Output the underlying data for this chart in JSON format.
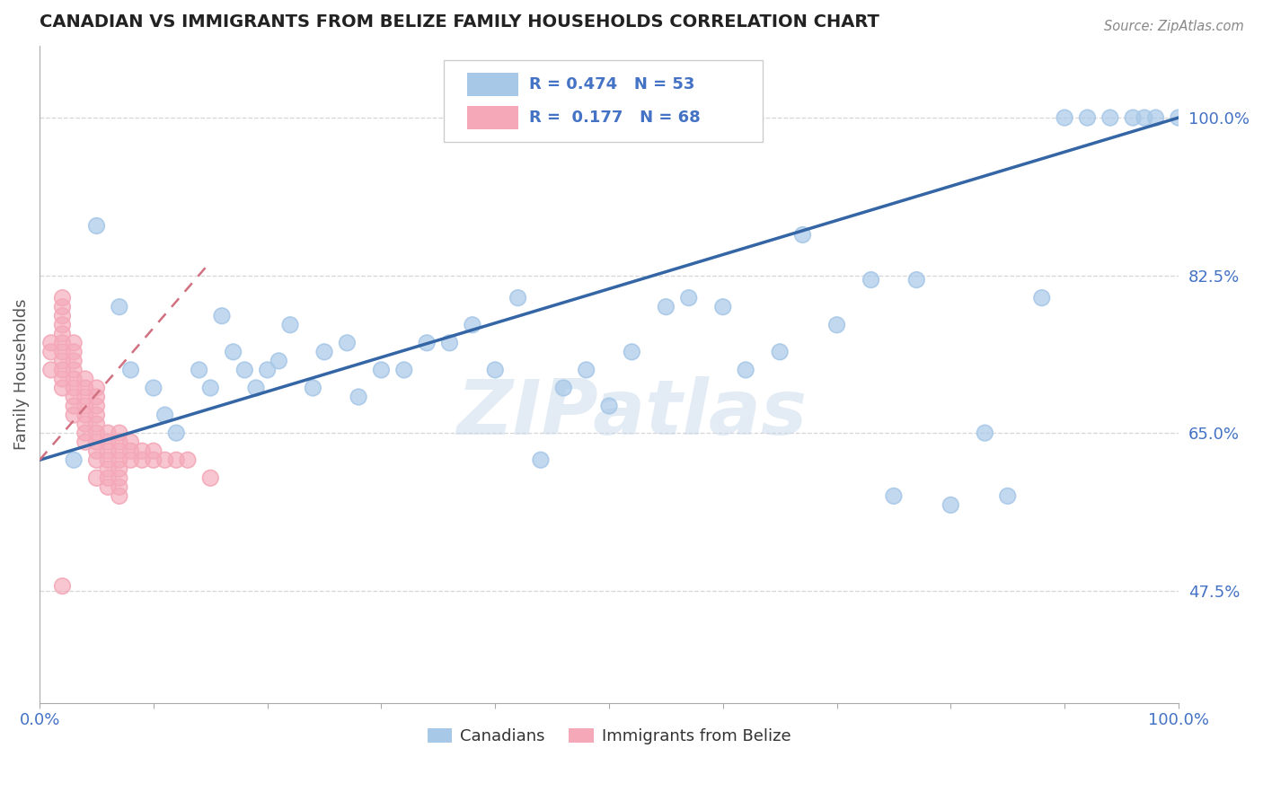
{
  "title": "CANADIAN VS IMMIGRANTS FROM BELIZE FAMILY HOUSEHOLDS CORRELATION CHART",
  "source": "Source: ZipAtlas.com",
  "ylabel": "Family Households",
  "watermark": "ZIPatlas",
  "xlim": [
    0.0,
    100.0
  ],
  "ylim": [
    35.0,
    108.0
  ],
  "ytick_vals": [
    47.5,
    65.0,
    82.5,
    100.0
  ],
  "canadians_R": 0.474,
  "canadians_N": 53,
  "belize_R": 0.177,
  "belize_N": 68,
  "canadian_color": "#A8C8E8",
  "belize_color": "#F4A8B8",
  "canadian_line_color": "#3465A4",
  "belize_line_color": "#D07080",
  "can_x": [
    3,
    5,
    7,
    8,
    10,
    11,
    12,
    14,
    15,
    16,
    17,
    18,
    19,
    20,
    21,
    22,
    24,
    25,
    27,
    28,
    30,
    32,
    34,
    36,
    38,
    40,
    42,
    44,
    46,
    48,
    50,
    52,
    55,
    57,
    60,
    62,
    65,
    67,
    70,
    73,
    75,
    77,
    80,
    83,
    85,
    88,
    90,
    92,
    94,
    96,
    97,
    98,
    100
  ],
  "can_y": [
    62,
    88,
    79,
    72,
    70,
    67,
    65,
    72,
    70,
    78,
    74,
    72,
    70,
    72,
    73,
    77,
    70,
    74,
    75,
    69,
    72,
    72,
    75,
    75,
    77,
    72,
    80,
    62,
    70,
    72,
    68,
    74,
    79,
    80,
    79,
    72,
    74,
    87,
    77,
    82,
    58,
    82,
    57,
    65,
    58,
    80,
    100,
    100,
    100,
    100,
    100,
    100,
    100
  ],
  "bel_x": [
    1,
    1,
    1,
    2,
    2,
    2,
    2,
    2,
    2,
    2,
    2,
    2,
    2,
    2,
    3,
    3,
    3,
    3,
    3,
    3,
    3,
    3,
    3,
    4,
    4,
    4,
    4,
    4,
    4,
    4,
    4,
    5,
    5,
    5,
    5,
    5,
    5,
    5,
    5,
    5,
    5,
    6,
    6,
    6,
    6,
    6,
    6,
    6,
    7,
    7,
    7,
    7,
    7,
    7,
    7,
    7,
    8,
    8,
    8,
    9,
    9,
    10,
    10,
    11,
    12,
    13,
    2,
    15
  ],
  "bel_y": [
    72,
    74,
    75,
    70,
    71,
    72,
    73,
    74,
    75,
    76,
    77,
    78,
    79,
    80,
    67,
    68,
    69,
    70,
    71,
    72,
    73,
    74,
    75,
    64,
    65,
    66,
    67,
    68,
    69,
    70,
    71,
    60,
    62,
    63,
    64,
    65,
    66,
    67,
    68,
    69,
    70,
    59,
    60,
    61,
    62,
    63,
    64,
    65,
    58,
    59,
    60,
    61,
    62,
    63,
    64,
    65,
    62,
    63,
    64,
    62,
    63,
    62,
    63,
    62,
    62,
    62,
    48,
    60
  ],
  "can_line_x0": 0,
  "can_line_x1": 100,
  "can_line_y0": 62.0,
  "can_line_y1": 100.0,
  "bel_line_x0": 0,
  "bel_line_x1": 15,
  "bel_line_y0": 62.0,
  "bel_line_y1": 84.0
}
